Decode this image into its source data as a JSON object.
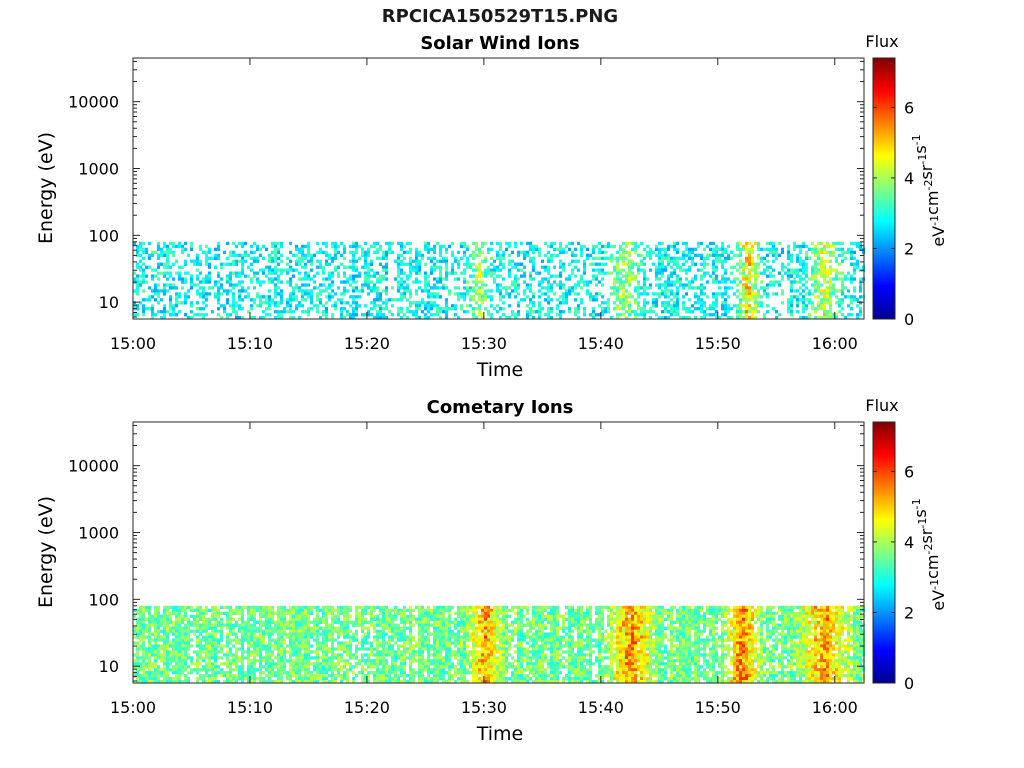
{
  "figure": {
    "title": "RPCICA150529T15.PNG"
  },
  "colorbar": {
    "label": "Flux",
    "unit_base": "eV",
    "unit_parts": [
      {
        "b": "eV",
        "e": "-1"
      },
      {
        "b": "cm",
        "e": "-2"
      },
      {
        "b": "sr",
        "e": "-1"
      },
      {
        "b": "s",
        "e": "-1"
      }
    ],
    "range": [
      0,
      7.4
    ],
    "ticks": [
      "0",
      "2",
      "4",
      "6"
    ],
    "tick_values": [
      0,
      2,
      4,
      6
    ],
    "colormap": [
      "#00008f",
      "#0000ff",
      "#0080ff",
      "#00ffff",
      "#80ff80",
      "#ffff00",
      "#ff8000",
      "#ff0000",
      "#800000"
    ]
  },
  "chart_data": [
    {
      "type": "heatmap",
      "title": "Solar Wind Ions",
      "xlabel": "Time",
      "ylabel": "Energy (eV)",
      "x_range": [
        "15:00",
        "16:02"
      ],
      "x_ticks": [
        "15:00",
        "15:10",
        "15:20",
        "15:30",
        "15:40",
        "15:50",
        "16:00"
      ],
      "x_tick_minutes": [
        0,
        10,
        20,
        30,
        40,
        50,
        60
      ],
      "x_max_minutes": 62.5,
      "y_scale": "log",
      "y_range": [
        5.6,
        45000
      ],
      "y_ticks": [
        "10",
        "100",
        "1000",
        "10000"
      ],
      "y_tick_values": [
        10,
        100,
        1000,
        10000
      ],
      "data_energy_range": [
        5.6,
        80
      ],
      "flux_range": [
        2,
        5.6
      ],
      "typical_flux": 2.8,
      "intense_intervals": [
        {
          "start": "15:29",
          "end": "15:30",
          "peak_flux": 4.2
        },
        {
          "start": "15:41",
          "end": "15:43",
          "peak_flux": 4.4
        },
        {
          "start": "15:52",
          "end": "15:53",
          "peak_flux": 5.6
        },
        {
          "start": "15:58",
          "end": "16:00",
          "peak_flux": 4.8
        }
      ]
    },
    {
      "type": "heatmap",
      "title": "Cometary Ions",
      "xlabel": "Time",
      "ylabel": "Energy (eV)",
      "x_range": [
        "15:00",
        "16:02"
      ],
      "x_ticks": [
        "15:00",
        "15:10",
        "15:20",
        "15:30",
        "15:40",
        "15:50",
        "16:00"
      ],
      "x_tick_minutes": [
        0,
        10,
        20,
        30,
        40,
        50,
        60
      ],
      "x_max_minutes": 62.5,
      "y_scale": "log",
      "y_range": [
        5.6,
        45000
      ],
      "y_ticks": [
        "10",
        "100",
        "1000",
        "10000"
      ],
      "y_tick_values": [
        10,
        100,
        1000,
        10000
      ],
      "data_energy_range": [
        5.6,
        80
      ],
      "flux_range": [
        2,
        6.2
      ],
      "typical_flux": 3.6,
      "intense_intervals": [
        {
          "start": "15:29",
          "end": "15:31",
          "peak_flux": 5.8
        },
        {
          "start": "15:41",
          "end": "15:44",
          "peak_flux": 6.0
        },
        {
          "start": "15:51",
          "end": "15:53",
          "peak_flux": 6.2
        },
        {
          "start": "15:57",
          "end": "16:01",
          "peak_flux": 5.8
        }
      ]
    }
  ]
}
